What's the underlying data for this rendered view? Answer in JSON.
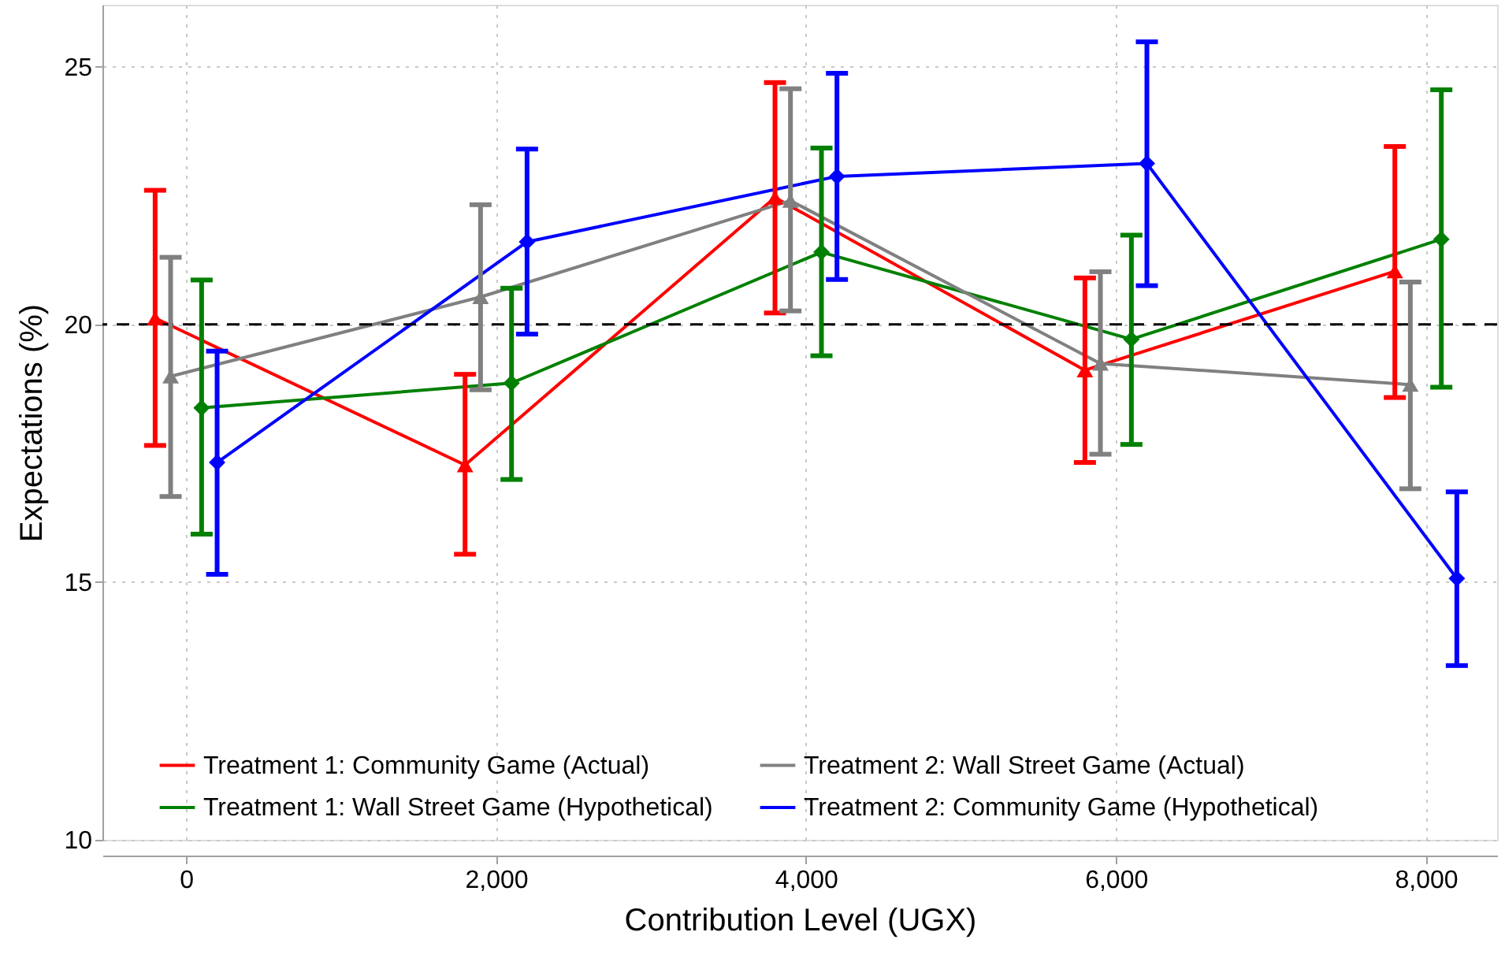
{
  "chart_data": {
    "type": "line",
    "xlabel": "Contribution Level (UGX)",
    "ylabel": "Expectations (%)",
    "xlim": [
      -540,
      8460
    ],
    "ylim": [
      10,
      26.2
    ],
    "xticks": [
      0,
      {
        "value": 2000,
        "label": "2,000"
      },
      {
        "value": 4000,
        "label": "4,000"
      },
      {
        "value": 6000,
        "label": "6,000"
      },
      {
        "value": 8000,
        "label": "8,000"
      }
    ],
    "yticks": [
      10,
      15,
      20,
      25
    ],
    "grid": true,
    "legend": "bottom",
    "line_style": "solid",
    "ref_lines": [
      {
        "axis": "y",
        "value": 20,
        "color": "#000000",
        "line_style": "dashed"
      }
    ],
    "series": [
      {
        "name": "Treatment 1: Community Game (Actual)",
        "color": "#ff0000",
        "marker": "triangle",
        "x": [
          -200,
          1800,
          3800,
          5800,
          7800
        ],
        "values": [
          20.12,
          17.27,
          22.46,
          19.11,
          21.03
        ],
        "errors": [
          [
            17.65,
            22.6
          ],
          [
            15.54,
            19.03
          ],
          [
            20.22,
            24.69
          ],
          [
            17.32,
            20.9
          ],
          [
            18.58,
            23.45
          ]
        ]
      },
      {
        "name": "Treatment 1: Wall Street Game (Hypothetical)",
        "color": "#008000",
        "marker": "diamond",
        "x": [
          100,
          2100,
          4100,
          6100,
          8100
        ],
        "values": [
          18.38,
          18.86,
          21.4,
          19.71,
          21.65
        ],
        "errors": [
          [
            15.93,
            20.86
          ],
          [
            16.99,
            20.7
          ],
          [
            19.39,
            23.42
          ],
          [
            17.67,
            21.73
          ],
          [
            18.78,
            24.55
          ]
        ]
      },
      {
        "name": "Treatment 2: Wall Street Game (Actual)",
        "color": "#808080",
        "marker": "triangle",
        "x": [
          -100,
          1900,
          3900,
          5900,
          7900
        ],
        "values": [
          18.99,
          20.53,
          22.4,
          19.24,
          18.83
        ],
        "errors": [
          [
            16.66,
            21.3
          ],
          [
            18.73,
            22.32
          ],
          [
            20.26,
            24.57
          ],
          [
            17.48,
            21.02
          ],
          [
            16.81,
            20.82
          ]
        ]
      },
      {
        "name": "Treatment 2: Community Game (Hypothetical)",
        "color": "#0000ff",
        "marker": "diamond",
        "x": [
          200,
          2200,
          4200,
          6200,
          8200
        ],
        "values": [
          17.32,
          21.6,
          22.87,
          23.12,
          15.07
        ],
        "errors": [
          [
            15.15,
            19.48
          ],
          [
            19.81,
            23.4
          ],
          [
            20.87,
            24.87
          ],
          [
            20.75,
            25.48
          ],
          [
            13.38,
            16.75
          ]
        ]
      }
    ]
  }
}
